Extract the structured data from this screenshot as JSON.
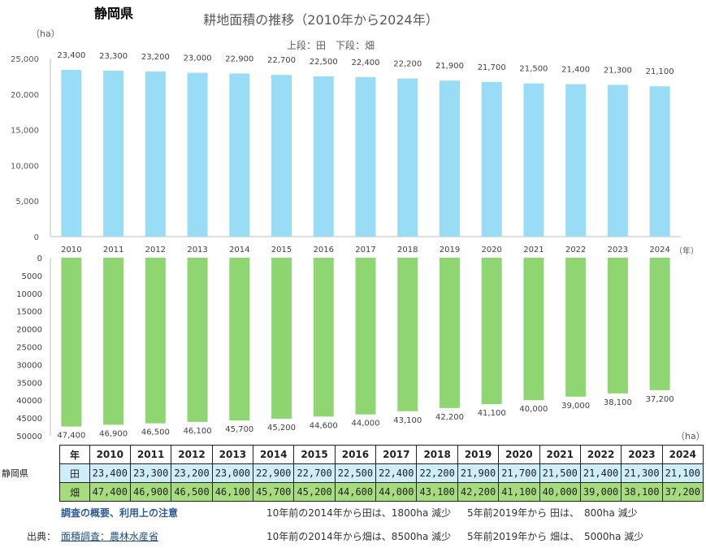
{
  "header": {
    "prefecture": "静岡県",
    "title": "耕地面積の推移（2010年から2024年）",
    "subtitle": "上段：田　下段：畑"
  },
  "chart_data": [
    {
      "type": "bar",
      "categories": [
        "2010",
        "2011",
        "2012",
        "2013",
        "2014",
        "2015",
        "2016",
        "2017",
        "2018",
        "2019",
        "2020",
        "2021",
        "2022",
        "2023",
        "2024"
      ],
      "series": [
        {
          "name": "田",
          "values": [
            23400,
            23300,
            23200,
            23000,
            22900,
            22700,
            22500,
            22400,
            22200,
            21900,
            21700,
            21500,
            21400,
            21300,
            21100
          ]
        }
      ],
      "data_labels": [
        "23,400",
        "23,300",
        "23,200",
        "23,000",
        "22,900",
        "22,700",
        "22,500",
        "22,400",
        "22,200",
        "21,900",
        "21,700",
        "21,500",
        "21,400",
        "21,300",
        "21,100"
      ],
      "ylabel": "（ha）",
      "xlabel": "（年）",
      "ylim": [
        0,
        25000
      ],
      "yticks": [
        "0",
        "5,000",
        "10,000",
        "15,000",
        "20,000",
        "25,000"
      ],
      "grid": false,
      "color": "#99dcf6"
    },
    {
      "type": "bar",
      "orientation": "downward",
      "categories": [
        "2010",
        "2011",
        "2012",
        "2013",
        "2014",
        "2015",
        "2016",
        "2017",
        "2018",
        "2019",
        "2020",
        "2021",
        "2022",
        "2023",
        "2024"
      ],
      "series": [
        {
          "name": "畑",
          "values": [
            47400,
            46900,
            46500,
            46100,
            45700,
            45200,
            44600,
            44000,
            43100,
            42200,
            41100,
            40000,
            39000,
            38100,
            37200
          ]
        }
      ],
      "data_labels": [
        "47,400",
        "46,900",
        "46,500",
        "46,100",
        "45,700",
        "45,200",
        "44,600",
        "44,000",
        "43,100",
        "42,200",
        "41,100",
        "40,000",
        "39,000",
        "38,100",
        "37,200"
      ],
      "ylabel": "（ha）",
      "ylim": [
        0,
        50000
      ],
      "yticks": [
        "0",
        "5000",
        "10000",
        "15000",
        "20000",
        "25000",
        "30000",
        "35000",
        "40000",
        "45000",
        "50000"
      ],
      "grid": false,
      "color": "#8fd672"
    }
  ],
  "table": {
    "prefecture": "静岡県",
    "year_header": "年",
    "years": [
      "2010",
      "2011",
      "2012",
      "2013",
      "2014",
      "2015",
      "2016",
      "2017",
      "2018",
      "2019",
      "2020",
      "2021",
      "2022",
      "2023",
      "2024"
    ],
    "rows": [
      {
        "label": "田",
        "values": [
          "23,400",
          "23,300",
          "23,200",
          "23,000",
          "22,900",
          "22,700",
          "22,500",
          "22,400",
          "22,200",
          "21,900",
          "21,700",
          "21,500",
          "21,400",
          "21,300",
          "21,100"
        ]
      },
      {
        "label": "畑",
        "values": [
          "47,400",
          "46,900",
          "46,500",
          "46,100",
          "45,700",
          "45,200",
          "44,600",
          "44,000",
          "43,100",
          "42,200",
          "41,100",
          "40,000",
          "39,000",
          "38,100",
          "37,200"
        ]
      }
    ]
  },
  "notes": {
    "overview_link": "調査の概要、利用上の注意",
    "source_label": "出典：",
    "source_link": "面積調査：農林水産省",
    "paddy_10y": "10年前の2014年から田は、1800ha 減少",
    "paddy_5y": "5年前2019年から 田は、　800ha 減少",
    "field_10y": "10年前の2014年から畑は、8500ha 減少",
    "field_5y": "5年前2019年から 畑は、　5000ha 減少"
  }
}
